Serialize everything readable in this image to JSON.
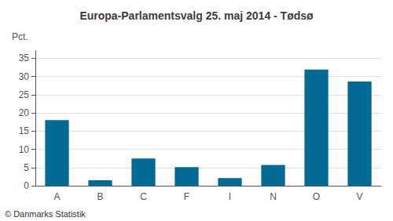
{
  "chart_data": {
    "type": "bar",
    "title": "Europa-Parlamentsvalg 25. maj 2014 - Tødsø",
    "ylabel": "Pct.",
    "annotations": [
      "© Danmarks Statistik"
    ],
    "categories": [
      "A",
      "B",
      "C",
      "F",
      "I",
      "N",
      "O",
      "V"
    ],
    "values": [
      18.0,
      1.5,
      7.5,
      5.1,
      2.1,
      5.7,
      31.9,
      28.6
    ],
    "color": "#006994",
    "ylim": [
      0,
      37
    ],
    "yticks": [
      0,
      5,
      10,
      15,
      20,
      25,
      30,
      35
    ],
    "grid": true
  }
}
